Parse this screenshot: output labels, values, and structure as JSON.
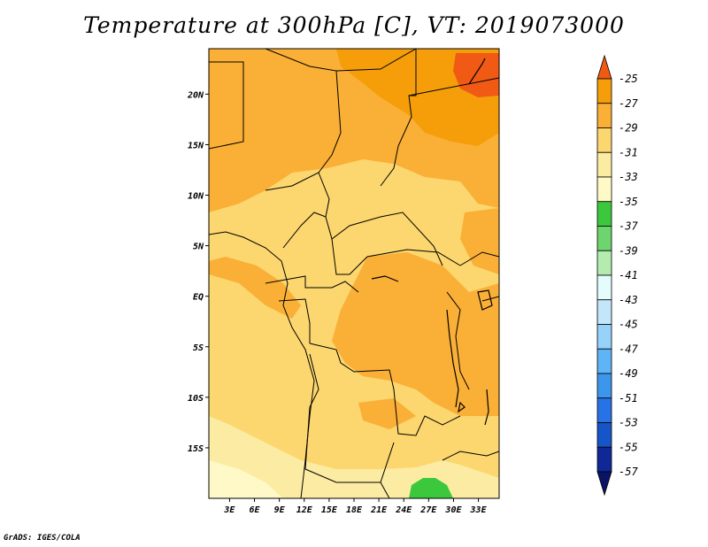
{
  "title": "Temperature at 300hPa [C], VT: 2019073000",
  "credit": "GrADS: IGES/COLA",
  "chart_data": {
    "type": "heatmap",
    "title": "Temperature at 300hPa [C], VT: 2019073000",
    "x_tick_labels": [
      "3E",
      "6E",
      "9E",
      "12E",
      "15E",
      "18E",
      "21E",
      "24E",
      "27E",
      "30E",
      "33E"
    ],
    "x_tick_values": [
      3,
      6,
      9,
      12,
      15,
      18,
      21,
      24,
      27,
      30,
      33
    ],
    "y_tick_labels": [
      "20N",
      "15N",
      "10N",
      "5N",
      "EQ",
      "5S",
      "10S",
      "15S"
    ],
    "y_tick_values": [
      20,
      15,
      10,
      5,
      0,
      -5,
      -10,
      -15
    ],
    "xlim": [
      0.5,
      35.5
    ],
    "ylim": [
      -20,
      24.5
    ],
    "colorbar": {
      "labels": [
        "-25",
        "-27",
        "-29",
        "-31",
        "-33",
        "-35",
        "-37",
        "-39",
        "-41",
        "-43",
        "-45",
        "-47",
        "-49",
        "-51",
        "-53",
        "-55",
        "-57"
      ],
      "colors": [
        "#f05a14",
        "#f59e0a",
        "#faaf37",
        "#fcd66e",
        "#fceba2",
        "#fff9c8",
        "#3cc83c",
        "#6ed46e",
        "#b4ecb0",
        "#e4fcfc",
        "#c4e6fa",
        "#96d2fa",
        "#5eb4f5",
        "#3c96eb",
        "#2773e6",
        "#1555c8",
        "#0f2896",
        "#0a1464"
      ]
    },
    "regions": [
      {
        "level": "-31 to -29",
        "x": [
          0.5,
          35.5
        ],
        "y": [
          12,
          24.5
        ]
      },
      {
        "level": "-29 to -27",
        "x": [
          19,
          35.5
        ],
        "y": [
          16,
          24.5
        ]
      },
      {
        "level": "-27 to -25",
        "x": [
          27.5,
          35.5
        ],
        "y": [
          20.5,
          24.5
        ]
      },
      {
        "level": "-33 to -31",
        "x": [
          0.5,
          35.5
        ],
        "y": [
          -18,
          13
        ]
      },
      {
        "level": "-35 to -33",
        "x": [
          3,
          18
        ],
        "y": [
          -20,
          -13
        ]
      },
      {
        "level": "-37 to -35",
        "x": [
          24.5,
          29.5
        ],
        "y": [
          -20,
          -17.5
        ]
      }
    ]
  }
}
